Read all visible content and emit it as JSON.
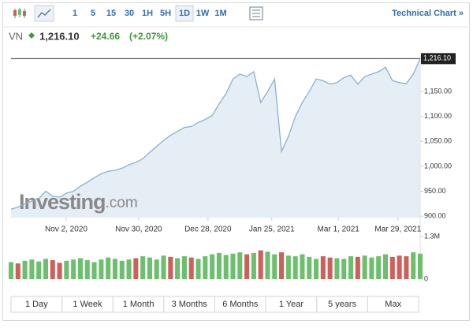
{
  "header": {
    "intervals": [
      "1",
      "5",
      "15",
      "30",
      "1H",
      "5H",
      "1D",
      "1W",
      "1M"
    ],
    "active_interval": "1D",
    "technical_link": "Technical Chart »",
    "symbol": "VN",
    "change": "+24.66",
    "change_percent": "(+2.07%)"
  },
  "chart_data": {
    "type": "line",
    "color": "#8ab0d2",
    "fill": "#dfe9f3",
    "values": [
      914,
      918,
      925,
      930,
      935,
      950,
      940,
      938,
      946,
      950,
      960,
      968,
      977,
      985,
      990,
      992,
      996,
      1003,
      1008,
      1015,
      1028,
      1040,
      1052,
      1062,
      1070,
      1078,
      1080,
      1088,
      1094,
      1102,
      1125,
      1146,
      1175,
      1185,
      1180,
      1190,
      1128,
      1150,
      1175,
      1030,
      1060,
      1100,
      1128,
      1150,
      1175,
      1172,
      1165,
      1168,
      1178,
      1183,
      1165,
      1180,
      1185,
      1190,
      1199,
      1172,
      1168,
      1166,
      1185,
      1216.1
    ],
    "xlim": [
      0,
      59
    ],
    "xticks": [
      {
        "value": 7.95,
        "label": "Nov 2, 2020"
      },
      {
        "value": 18.4,
        "label": "Nov 30, 2020"
      },
      {
        "value": 28.4,
        "label": "Dec 28, 2020"
      },
      {
        "value": 37.6,
        "label": "Jan 25, 2021"
      },
      {
        "value": 47.2,
        "label": "Mar 1, 2021"
      },
      {
        "value": 55.8,
        "label": "Mar 29, 2021"
      }
    ],
    "ylim": [
      897,
      1223
    ],
    "yticks": [
      {
        "value": 900,
        "label": "900.00"
      },
      {
        "value": 950,
        "label": "950.00"
      },
      {
        "value": 1000,
        "label": "1,000.00"
      },
      {
        "value": 1050,
        "label": "1,050.00"
      },
      {
        "value": 1100,
        "label": "1,100.00"
      },
      {
        "value": 1150,
        "label": "1,150.00"
      }
    ],
    "last_price": {
      "value": 1216.1,
      "label": "1,216.10"
    },
    "watermark": [
      "Investing",
      ".com"
    ],
    "volume": {
      "values": [
        520000,
        480000,
        560000,
        600000,
        540000,
        620000,
        580000,
        500000,
        560000,
        600000,
        640000,
        580000,
        520000,
        600000,
        660000,
        620000,
        560000,
        600000,
        640000,
        700000,
        660000,
        600000,
        720000,
        680000,
        640000,
        700000,
        660000,
        620000,
        700000,
        760000,
        800000,
        740000,
        780000,
        820000,
        760000,
        800000,
        880000,
        840000,
        760000,
        820000,
        720000,
        700000,
        760000,
        680000,
        620000,
        700000,
        660000,
        640000,
        620000,
        700000,
        680000,
        720000,
        660000,
        700000,
        760000,
        680000,
        720000,
        700000,
        820000,
        780000
      ],
      "colors": [
        "#6cbf6c",
        "#cf5f5a",
        "#6cbf6c",
        "#6cbf6c",
        "#6cbf6c",
        "#6cbf6c",
        "#cf5f5a",
        "#cf5f5a",
        "#6cbf6c",
        "#6cbf6c",
        "#6cbf6c",
        "#6cbf6c",
        "#6cbf6c",
        "#6cbf6c",
        "#6cbf6c",
        "#6cbf6c",
        "#6cbf6c",
        "#6cbf6c",
        "#cf5f5a",
        "#6cbf6c",
        "#6cbf6c",
        "#6cbf6c",
        "#6cbf6c",
        "#cf5f5a",
        "#6cbf6c",
        "#6cbf6c",
        "#cf5f5a",
        "#6cbf6c",
        "#6cbf6c",
        "#6cbf6c",
        "#6cbf6c",
        "#6cbf6c",
        "#6cbf6c",
        "#6cbf6c",
        "#cf5f5a",
        "#6cbf6c",
        "#cf5f5a",
        "#6cbf6c",
        "#6cbf6c",
        "#cf5f5a",
        "#6cbf6c",
        "#6cbf6c",
        "#6cbf6c",
        "#6cbf6c",
        "#6cbf6c",
        "#cf5f5a",
        "#cf5f5a",
        "#6cbf6c",
        "#6cbf6c",
        "#6cbf6c",
        "#cf5f5a",
        "#6cbf6c",
        "#6cbf6c",
        "#6cbf6c",
        "#6cbf6c",
        "#cf5f5a",
        "#cf5f5a",
        "#cf5f5a",
        "#6cbf6c",
        "#6cbf6c"
      ],
      "ylim": [
        0,
        1400000
      ],
      "yticks": [
        0,
        {
          "value": 1300000,
          "label": "1.3M"
        }
      ]
    }
  },
  "ranges": [
    "1 Day",
    "1 Week",
    "1 Month",
    "3 Months",
    "6 Months",
    "1 Year",
    "5 years",
    "Max"
  ]
}
